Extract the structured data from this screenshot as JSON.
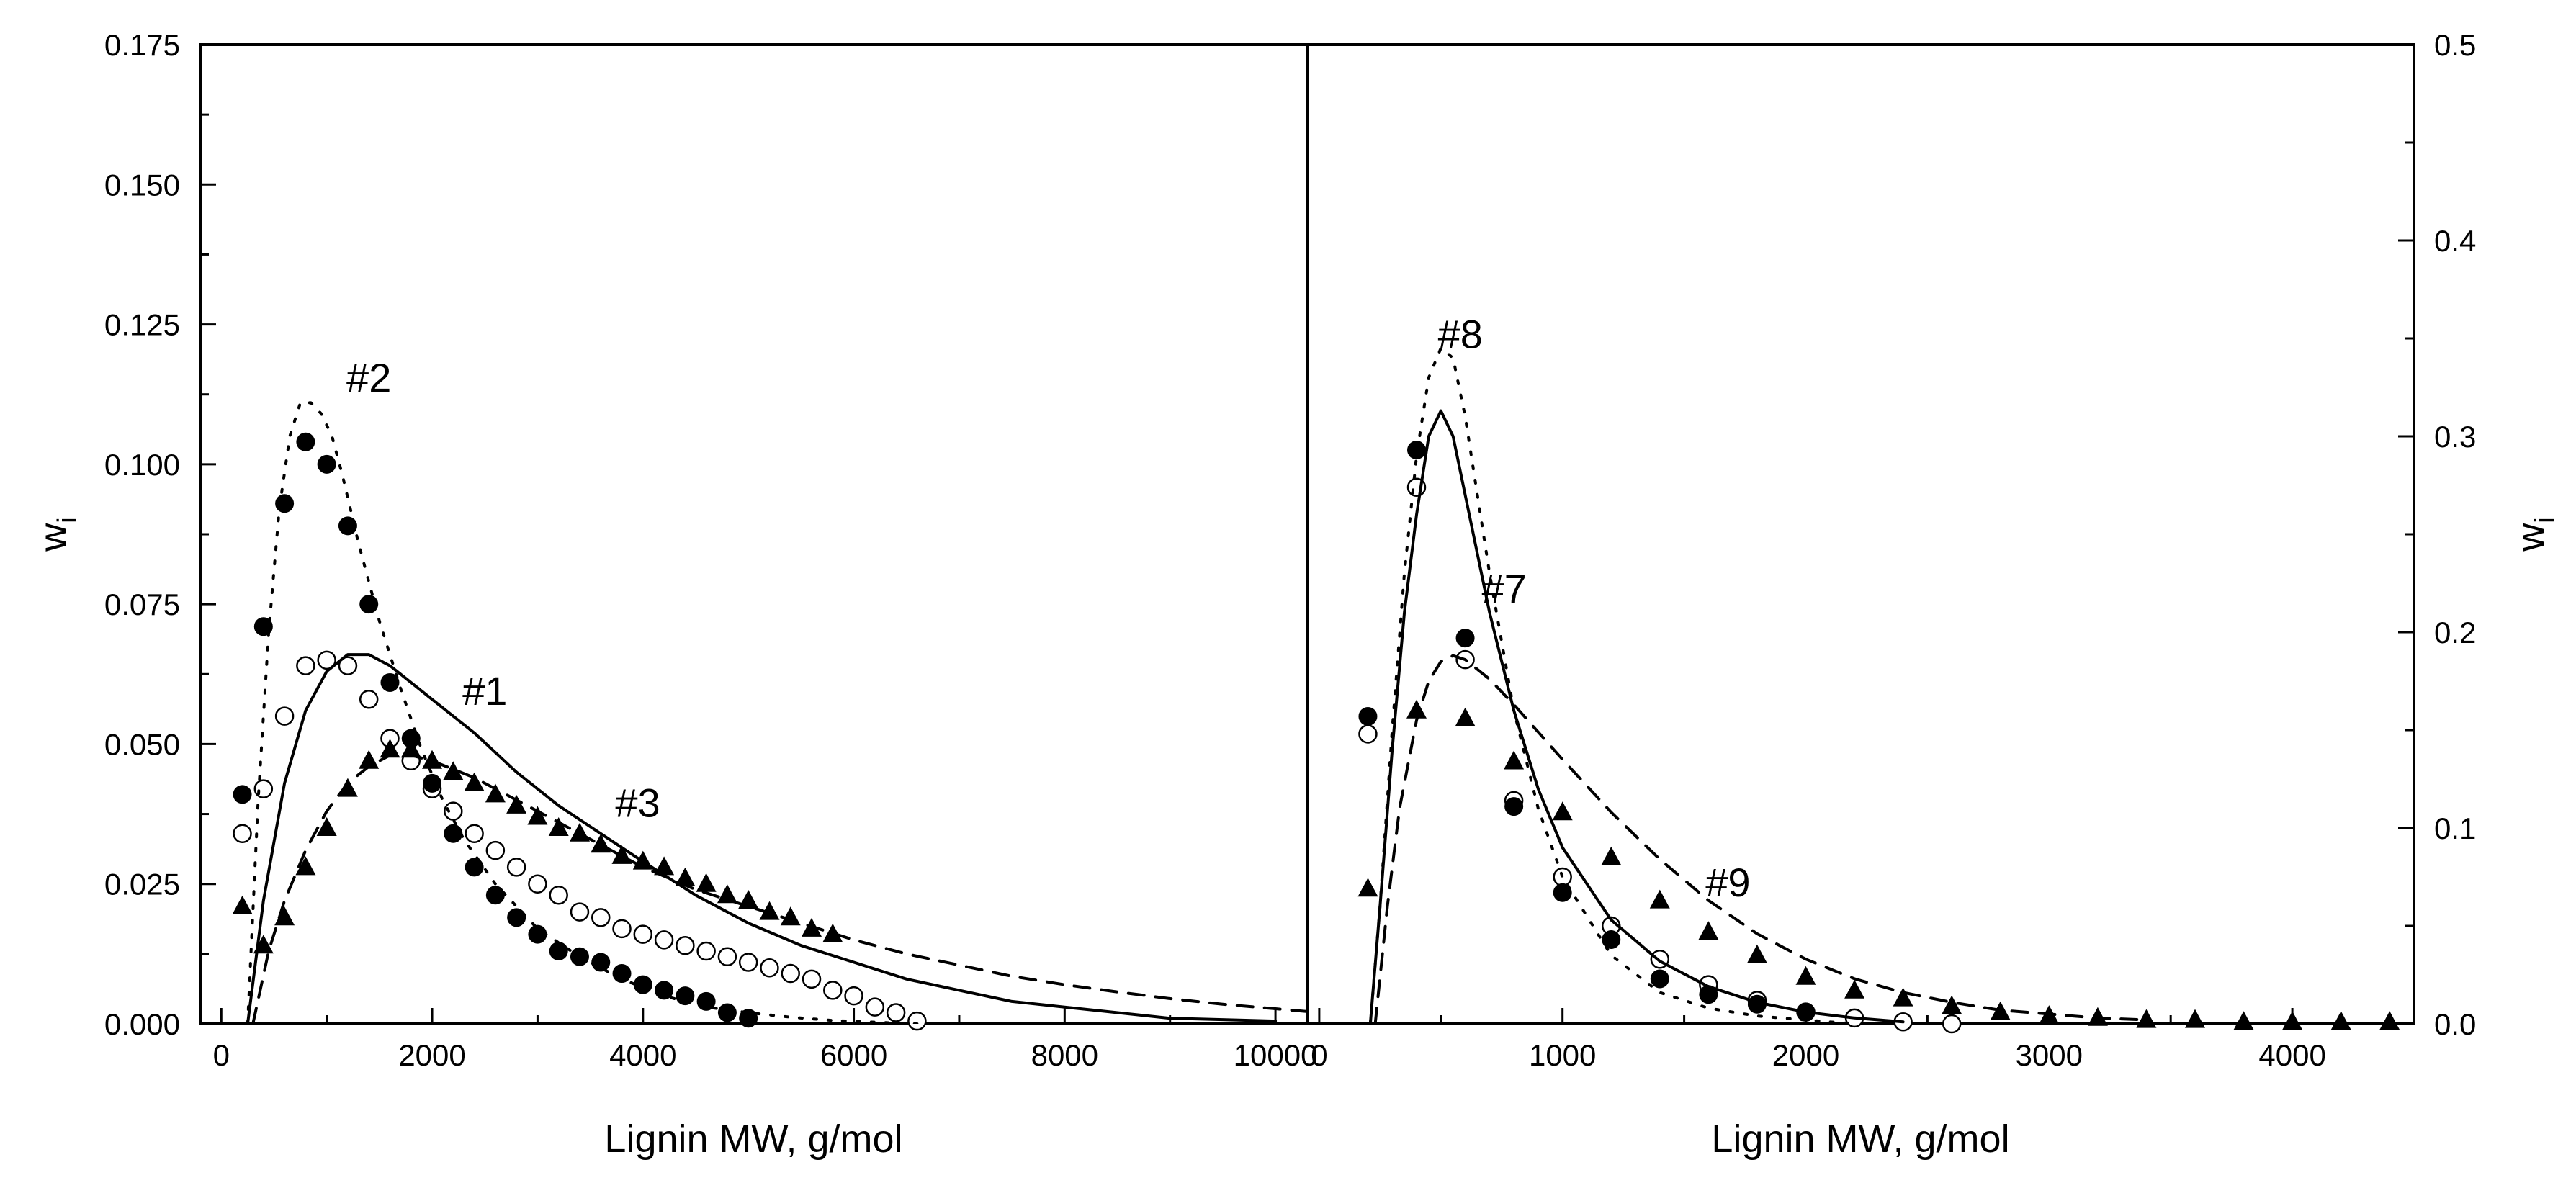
{
  "chart_data": [
    {
      "type": "scatter",
      "panel": "left",
      "xlabel": "Lignin MW, g/mol",
      "ylabel": "w",
      "ylabel_subscript": "i",
      "xlim": [
        -200,
        10300
      ],
      "ylim": [
        0,
        0.175
      ],
      "xticks": [
        0,
        2000,
        4000,
        6000,
        8000,
        10000
      ],
      "xtick_labels": [
        "0",
        "2000",
        "4000",
        "6000",
        "8000",
        "10000"
      ],
      "yticks": [
        0,
        0.025,
        0.05,
        0.075,
        0.1,
        0.125,
        0.15,
        0.175
      ],
      "ytick_labels": [
        "0.000",
        "0.025",
        "0.050",
        "0.075",
        "0.100",
        "0.125",
        "0.150",
        "0.175"
      ],
      "grid": false,
      "labels": [
        {
          "text": "#2",
          "x": 1400,
          "y": 0.113
        },
        {
          "text": "#1",
          "x": 2500,
          "y": 0.057
        },
        {
          "text": "#3",
          "x": 3950,
          "y": 0.037
        }
      ],
      "series": [
        {
          "name": "#1 data",
          "marker": "open-circle",
          "x": [
            200,
            400,
            600,
            800,
            1000,
            1200,
            1400,
            1600,
            1800,
            2000,
            2200,
            2400,
            2600,
            2800,
            3000,
            3200,
            3400,
            3600,
            3800,
            4000,
            4200,
            4400,
            4600,
            4800,
            5000,
            5200,
            5400,
            5600,
            5800,
            6000,
            6200,
            6400,
            6600
          ],
          "values": [
            0.034,
            0.042,
            0.055,
            0.064,
            0.065,
            0.064,
            0.058,
            0.051,
            0.047,
            0.042,
            0.038,
            0.034,
            0.031,
            0.028,
            0.025,
            0.023,
            0.02,
            0.019,
            0.017,
            0.016,
            0.015,
            0.014,
            0.013,
            0.012,
            0.011,
            0.01,
            0.009,
            0.008,
            0.006,
            0.005,
            0.003,
            0.002,
            0.0005
          ]
        },
        {
          "name": "#2 data",
          "marker": "filled-circle",
          "x": [
            200,
            400,
            600,
            800,
            1000,
            1200,
            1400,
            1600,
            1800,
            2000,
            2200,
            2400,
            2600,
            2800,
            3000,
            3200,
            3400,
            3600,
            3800,
            4000,
            4200,
            4400,
            4600,
            4800,
            5000
          ],
          "values": [
            0.041,
            0.071,
            0.093,
            0.104,
            0.1,
            0.089,
            0.075,
            0.061,
            0.051,
            0.043,
            0.034,
            0.028,
            0.023,
            0.019,
            0.016,
            0.013,
            0.012,
            0.011,
            0.009,
            0.007,
            0.006,
            0.005,
            0.004,
            0.002,
            0.001
          ]
        },
        {
          "name": "#3 data",
          "marker": "filled-triangle",
          "x": [
            200,
            400,
            600,
            800,
            1000,
            1200,
            1400,
            1600,
            1800,
            2000,
            2200,
            2400,
            2600,
            2800,
            3000,
            3200,
            3400,
            3600,
            3800,
            4000,
            4200,
            4400,
            4600,
            4800,
            5000,
            5200,
            5400,
            5600,
            5800
          ],
          "values": [
            0.021,
            0.014,
            0.019,
            0.028,
            0.035,
            0.042,
            0.047,
            0.049,
            0.049,
            0.047,
            0.045,
            0.043,
            0.041,
            0.039,
            0.037,
            0.035,
            0.034,
            0.032,
            0.03,
            0.029,
            0.028,
            0.026,
            0.025,
            0.023,
            0.022,
            0.02,
            0.019,
            0.017,
            0.016
          ]
        },
        {
          "name": "#1 fit",
          "line": "solid",
          "x": [
            250,
            400,
            600,
            800,
            1000,
            1200,
            1400,
            1600,
            1800,
            2000,
            2400,
            2800,
            3200,
            3600,
            4000,
            4500,
            5000,
            5500,
            6000,
            6500,
            7000,
            7500,
            8000,
            9000,
            10000
          ],
          "values": [
            0.0,
            0.022,
            0.043,
            0.056,
            0.063,
            0.066,
            0.066,
            0.064,
            0.061,
            0.058,
            0.052,
            0.045,
            0.039,
            0.034,
            0.029,
            0.023,
            0.018,
            0.014,
            0.011,
            0.008,
            0.006,
            0.004,
            0.003,
            0.001,
            0.0005
          ]
        },
        {
          "name": "#2 fit",
          "line": "dotted",
          "x": [
            250,
            350,
            450,
            550,
            650,
            750,
            850,
            950,
            1050,
            1150,
            1300,
            1500,
            1700,
            1900,
            2100,
            2300,
            2600,
            3000,
            3400,
            3800,
            4200,
            4600,
            5000,
            5400,
            5800,
            6200,
            6600
          ],
          "values": [
            0.0,
            0.04,
            0.07,
            0.092,
            0.105,
            0.111,
            0.111,
            0.109,
            0.105,
            0.098,
            0.086,
            0.072,
            0.06,
            0.049,
            0.04,
            0.033,
            0.025,
            0.017,
            0.012,
            0.008,
            0.005,
            0.003,
            0.002,
            0.0012,
            0.0006,
            0.0003,
            0.0
          ]
        },
        {
          "name": "#3 fit",
          "line": "dashed",
          "x": [
            300,
            450,
            600,
            800,
            1000,
            1200,
            1400,
            1600,
            1800,
            2000,
            2400,
            2800,
            3200,
            3600,
            4000,
            4500,
            5000,
            5500,
            6000,
            6500,
            7000,
            7500,
            8000,
            8500,
            9000,
            9500,
            10000,
            10300
          ],
          "values": [
            0.0,
            0.013,
            0.022,
            0.031,
            0.038,
            0.043,
            0.046,
            0.048,
            0.048,
            0.047,
            0.044,
            0.04,
            0.036,
            0.032,
            0.028,
            0.024,
            0.021,
            0.018,
            0.015,
            0.0125,
            0.0105,
            0.0085,
            0.007,
            0.0057,
            0.0045,
            0.0035,
            0.0027,
            0.0022
          ]
        }
      ]
    },
    {
      "type": "scatter",
      "panel": "right",
      "xlabel": "Lignin MW, g/mol",
      "ylabel": "w",
      "ylabel_subscript": "i",
      "ylabel_position": "right",
      "xlim": [
        -50,
        4500
      ],
      "ylim": [
        0,
        0.5
      ],
      "xticks": [
        0,
        1000,
        2000,
        3000,
        4000
      ],
      "xtick_labels": [
        "0",
        "1000",
        "2000",
        "3000",
        "4000"
      ],
      "yticks": [
        0,
        0.1,
        0.2,
        0.3,
        0.4,
        0.5
      ],
      "ytick_labels": [
        "0.0",
        "0.1",
        "0.2",
        "0.3",
        "0.4",
        "0.5"
      ],
      "grid": false,
      "labels": [
        {
          "text": "#8",
          "x": 580,
          "y": 0.345
        },
        {
          "text": "#7",
          "x": 760,
          "y": 0.215
        },
        {
          "text": "#9",
          "x": 1680,
          "y": 0.065
        }
      ],
      "series": [
        {
          "name": "#7 data",
          "marker": "open-circle",
          "x": [
            200,
            400,
            600,
            800,
            1000,
            1200,
            1400,
            1600,
            1800,
            2000,
            2200,
            2400,
            2600
          ],
          "values": [
            0.148,
            0.274,
            0.186,
            0.114,
            0.075,
            0.05,
            0.033,
            0.02,
            0.012,
            0.006,
            0.003,
            0.001,
            0.0
          ]
        },
        {
          "name": "#8 data",
          "marker": "filled-circle",
          "x": [
            200,
            400,
            600,
            800,
            1000,
            1200,
            1400,
            1600,
            1800,
            2000
          ],
          "values": [
            0.157,
            0.293,
            0.197,
            0.111,
            0.067,
            0.043,
            0.023,
            0.015,
            0.01,
            0.006
          ]
        },
        {
          "name": "#9 data",
          "marker": "filled-triangle",
          "x": [
            200,
            400,
            600,
            800,
            1000,
            1200,
            1400,
            1600,
            1800,
            2000,
            2200,
            2400,
            2600,
            2800,
            3000,
            3200,
            3400,
            3600,
            3800,
            4000,
            4200,
            4400
          ],
          "values": [
            0.069,
            0.16,
            0.156,
            0.134,
            0.108,
            0.085,
            0.063,
            0.047,
            0.035,
            0.024,
            0.017,
            0.013,
            0.009,
            0.006,
            0.004,
            0.003,
            0.002,
            0.002,
            0.001,
            0.001,
            0.001,
            0.001
          ]
        },
        {
          "name": "#7 fit",
          "line": "solid",
          "x": [
            210,
            250,
            300,
            350,
            400,
            450,
            500,
            550,
            600,
            700,
            800,
            900,
            1000,
            1200,
            1400,
            1600,
            1800,
            2000,
            2200,
            2400
          ],
          "values": [
            0.0,
            0.06,
            0.14,
            0.21,
            0.26,
            0.3,
            0.313,
            0.3,
            0.27,
            0.21,
            0.16,
            0.12,
            0.09,
            0.053,
            0.032,
            0.019,
            0.011,
            0.006,
            0.003,
            0.001
          ]
        },
        {
          "name": "#8 fit",
          "line": "dotted",
          "x": [
            210,
            250,
            300,
            350,
            400,
            450,
            500,
            550,
            600,
            650,
            700,
            800,
            900,
            1000,
            1200,
            1400,
            1600,
            1800,
            2000,
            2200
          ],
          "values": [
            0.0,
            0.06,
            0.15,
            0.23,
            0.29,
            0.33,
            0.345,
            0.34,
            0.31,
            0.27,
            0.23,
            0.16,
            0.11,
            0.075,
            0.035,
            0.016,
            0.008,
            0.004,
            0.002,
            0.0
          ]
        },
        {
          "name": "#9 fit",
          "line": "dashed",
          "x": [
            230,
            280,
            330,
            400,
            450,
            500,
            550,
            600,
            700,
            800,
            900,
            1000,
            1200,
            1400,
            1600,
            1800,
            2000,
            2200,
            2400,
            2600,
            2800,
            3000,
            3200,
            3400
          ],
          "values": [
            0.0,
            0.06,
            0.11,
            0.155,
            0.175,
            0.185,
            0.188,
            0.186,
            0.176,
            0.163,
            0.149,
            0.135,
            0.108,
            0.084,
            0.063,
            0.046,
            0.033,
            0.023,
            0.016,
            0.011,
            0.007,
            0.005,
            0.003,
            0.002
          ]
        }
      ]
    }
  ]
}
